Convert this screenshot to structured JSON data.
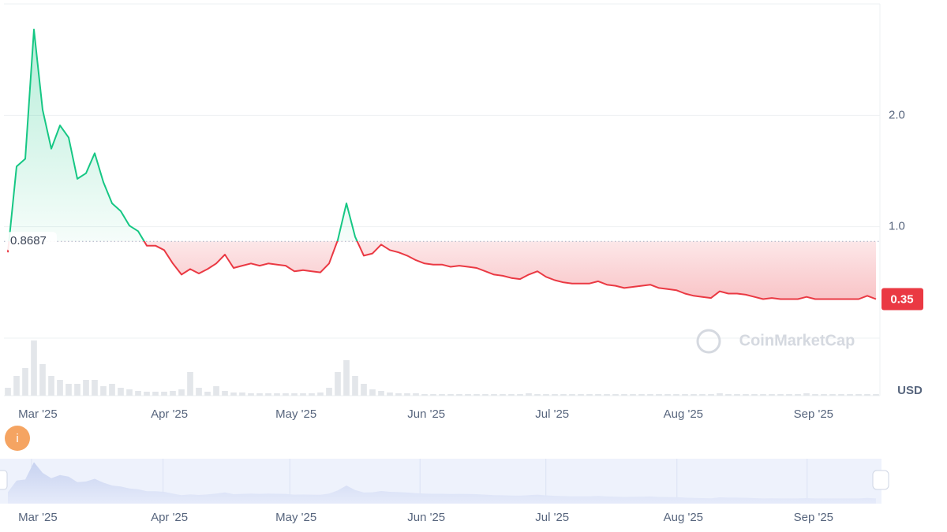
{
  "chart_data": {
    "type": "line",
    "values": [
      0.77,
      1.54,
      1.61,
      2.77,
      2.05,
      1.7,
      1.91,
      1.8,
      1.43,
      1.48,
      1.66,
      1.4,
      1.21,
      1.14,
      1.01,
      0.96,
      0.83,
      0.83,
      0.79,
      0.67,
      0.57,
      0.62,
      0.58,
      0.62,
      0.67,
      0.75,
      0.63,
      0.65,
      0.67,
      0.65,
      0.67,
      0.66,
      0.65,
      0.6,
      0.61,
      0.6,
      0.59,
      0.67,
      0.88,
      1.21,
      0.91,
      0.74,
      0.76,
      0.84,
      0.79,
      0.77,
      0.74,
      0.7,
      0.67,
      0.66,
      0.66,
      0.64,
      0.65,
      0.64,
      0.63,
      0.6,
      0.57,
      0.56,
      0.54,
      0.53,
      0.57,
      0.6,
      0.55,
      0.52,
      0.5,
      0.49,
      0.49,
      0.49,
      0.51,
      0.48,
      0.47,
      0.45,
      0.46,
      0.47,
      0.48,
      0.45,
      0.44,
      0.43,
      0.4,
      0.38,
      0.37,
      0.36,
      0.42,
      0.4,
      0.4,
      0.39,
      0.37,
      0.35,
      0.36,
      0.35,
      0.35,
      0.35,
      0.37,
      0.35,
      0.35,
      0.35,
      0.35,
      0.35,
      0.35,
      0.38,
      0.35
    ],
    "volume": [
      10,
      25,
      35,
      70,
      40,
      25,
      20,
      15,
      15,
      20,
      20,
      12,
      15,
      10,
      8,
      6,
      5,
      5,
      5,
      6,
      8,
      30,
      10,
      5,
      12,
      6,
      4,
      4,
      3,
      3,
      3,
      3,
      3,
      3,
      3,
      3,
      4,
      10,
      30,
      45,
      25,
      15,
      8,
      6,
      4,
      3,
      3,
      3,
      2,
      2,
      2,
      2,
      2,
      2,
      2,
      2,
      2,
      2,
      2,
      2,
      3,
      2,
      2,
      2,
      2,
      2,
      2,
      2,
      2,
      2,
      2,
      2,
      2,
      2,
      2,
      2,
      2,
      2,
      2,
      2,
      2,
      2,
      3,
      2,
      2,
      2,
      2,
      2,
      2,
      2,
      2,
      2,
      3,
      2,
      2,
      2,
      2,
      2,
      2,
      2,
      2
    ],
    "baseline": 0.8687,
    "current_price": 0.35,
    "currency": "USD",
    "watermark": "CoinMarketCap",
    "up_color": "#16c784",
    "down_color": "#ea3943",
    "xlim": [
      0,
      100
    ],
    "xticks": [
      {
        "value": 3.45,
        "label": "Mar '25"
      },
      {
        "value": 18.6,
        "label": "Apr '25"
      },
      {
        "value": 33.2,
        "label": "May '25"
      },
      {
        "value": 48.2,
        "label": "Jun '25"
      },
      {
        "value": 62.7,
        "label": "Jul '25"
      },
      {
        "value": 77.8,
        "label": "Aug '25"
      },
      {
        "value": 92.8,
        "label": "Sep '25"
      }
    ],
    "ylim": [
      0,
      3.0
    ],
    "yticks": [
      {
        "value": 1,
        "label": "1.0"
      },
      {
        "value": 2,
        "label": "2.0"
      }
    ],
    "grid": true
  }
}
